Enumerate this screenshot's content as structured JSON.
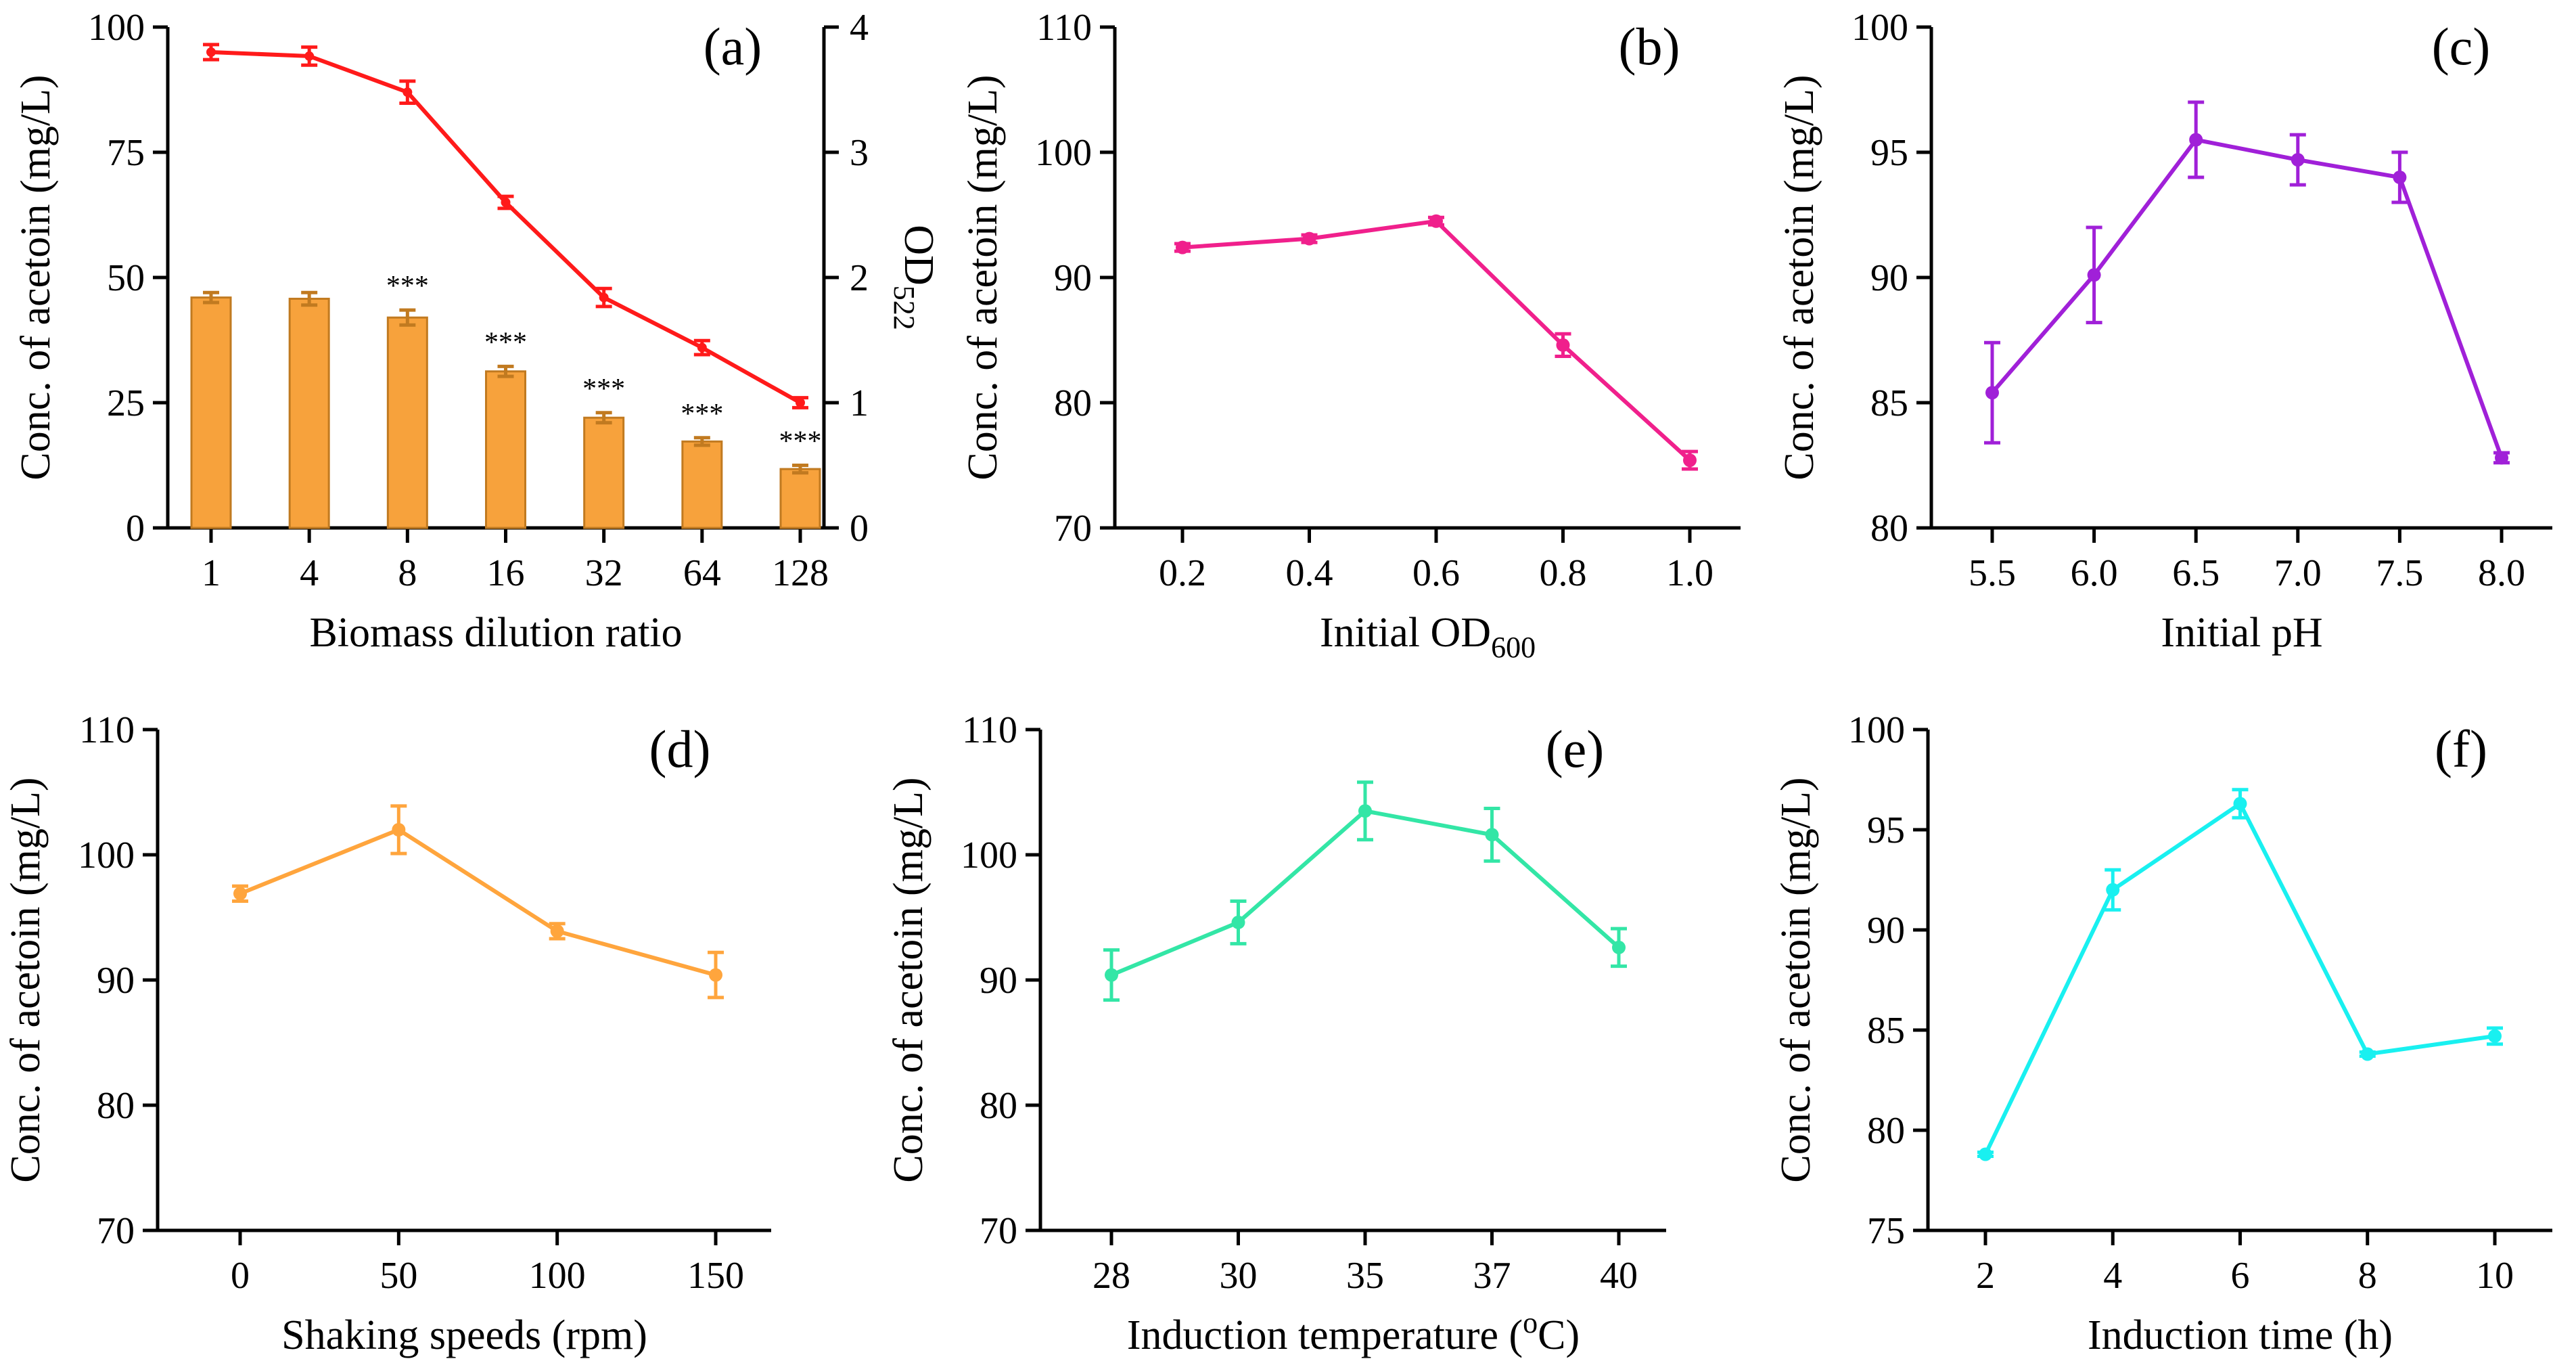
{
  "chart_data": [
    {
      "panel_label": "(a)",
      "type": "bar+line",
      "xlabel": "Biomass dilution ratio",
      "ylabel": "Conc. of acetoin (mg/L)",
      "ylabel_right_main": "OD",
      "ylabel_right_sub": "522",
      "categories": [
        "1",
        "4",
        "8",
        "16",
        "32",
        "64",
        "128"
      ],
      "ylim": [
        0,
        100
      ],
      "yticks": [
        "0",
        "25",
        "50",
        "75",
        "100"
      ],
      "y2lim": [
        0,
        4
      ],
      "y2ticks": [
        "0",
        "1",
        "2",
        "3",
        "4"
      ],
      "series": [
        {
          "name": "Conc. of acetoin",
          "kind": "bar",
          "axis": "left",
          "values": [
            95,
            94.2,
            87,
            65,
            46,
            36,
            25
          ],
          "errors": [
            1.5,
            1.8,
            2.2,
            1.2,
            1.8,
            1.4,
            1.0
          ],
          "color": "#ff1a1a"
        },
        {
          "name": "OD522",
          "kind": "line",
          "axis": "right",
          "values": [
            1.84,
            1.83,
            1.68,
            1.25,
            0.88,
            0.69,
            0.47
          ],
          "errors": [
            0.04,
            0.05,
            0.06,
            0.04,
            0.04,
            0.03,
            0.03
          ],
          "color": "#f7a23c"
        }
      ],
      "significance": [
        "",
        "",
        "***",
        "***",
        "***",
        "***",
        "***"
      ]
    },
    {
      "panel_label": "(b)",
      "type": "line",
      "xlabel_main": "Initial OD",
      "xlabel_sub": "600",
      "ylabel": "Conc. of acetoin (mg/L)",
      "categories": [
        "0.2",
        "0.4",
        "0.6",
        "0.8",
        "1.0"
      ],
      "ylim": [
        70,
        110
      ],
      "yticks": [
        "70",
        "80",
        "90",
        "100",
        "110"
      ],
      "series": [
        {
          "name": "acetoin",
          "values": [
            92.4,
            93.1,
            94.5,
            84.6,
            75.4
          ],
          "errors": [
            0.3,
            0.3,
            0.3,
            0.9,
            0.7
          ],
          "color": "#f0208c"
        }
      ]
    },
    {
      "panel_label": "(c)",
      "type": "line",
      "xlabel": "Initial pH",
      "ylabel": "Conc. of acetoin (mg/L)",
      "categories": [
        "5.5",
        "6.0",
        "6.5",
        "7.0",
        "7.5",
        "8.0"
      ],
      "ylim": [
        80,
        100
      ],
      "yticks": [
        "80",
        "85",
        "90",
        "95",
        "100"
      ],
      "series": [
        {
          "name": "acetoin",
          "values": [
            85.4,
            90.1,
            95.5,
            94.7,
            94.0,
            82.8
          ],
          "errors": [
            2.0,
            1.9,
            1.5,
            1.0,
            1.0,
            0.2
          ],
          "color": "#a020d8"
        }
      ]
    },
    {
      "panel_label": "(d)",
      "type": "line",
      "xlabel": "Shaking speeds (rpm)",
      "ylabel": "Conc. of acetoin (mg/L)",
      "categories": [
        "0",
        "50",
        "100",
        "150"
      ],
      "ylim": [
        70,
        110
      ],
      "yticks": [
        "70",
        "80",
        "90",
        "100",
        "110"
      ],
      "series": [
        {
          "name": "acetoin",
          "values": [
            96.9,
            102.0,
            93.9,
            90.4
          ],
          "errors": [
            0.6,
            1.9,
            0.6,
            1.8
          ],
          "color": "#ffa53d"
        }
      ]
    },
    {
      "panel_label": "(e)",
      "type": "line",
      "xlabel_main": "Induction temperature (",
      "xlabel_sup": "o",
      "xlabel_tail": "C)",
      "ylabel": "Conc. of acetoin (mg/L)",
      "categories": [
        "28",
        "30",
        "35",
        "37",
        "40"
      ],
      "ylim": [
        70,
        110
      ],
      "yticks": [
        "70",
        "80",
        "90",
        "100",
        "110"
      ],
      "series": [
        {
          "name": "acetoin",
          "values": [
            90.4,
            94.6,
            103.5,
            101.6,
            92.6
          ],
          "errors": [
            2.0,
            1.7,
            2.3,
            2.1,
            1.5
          ],
          "color": "#33e6a6"
        }
      ]
    },
    {
      "panel_label": "(f)",
      "type": "line",
      "xlabel": "Induction time (h)",
      "ylabel": "Conc. of acetoin (mg/L)",
      "categories": [
        "2",
        "4",
        "6",
        "8",
        "10"
      ],
      "ylim": [
        75,
        100
      ],
      "yticks": [
        "75",
        "80",
        "85",
        "90",
        "95",
        "100"
      ],
      "series": [
        {
          "name": "acetoin",
          "values": [
            78.8,
            92.0,
            96.3,
            83.8,
            84.7
          ],
          "errors": [
            0.1,
            1.0,
            0.7,
            0.1,
            0.4
          ],
          "color": "#19f0f0"
        }
      ]
    }
  ]
}
